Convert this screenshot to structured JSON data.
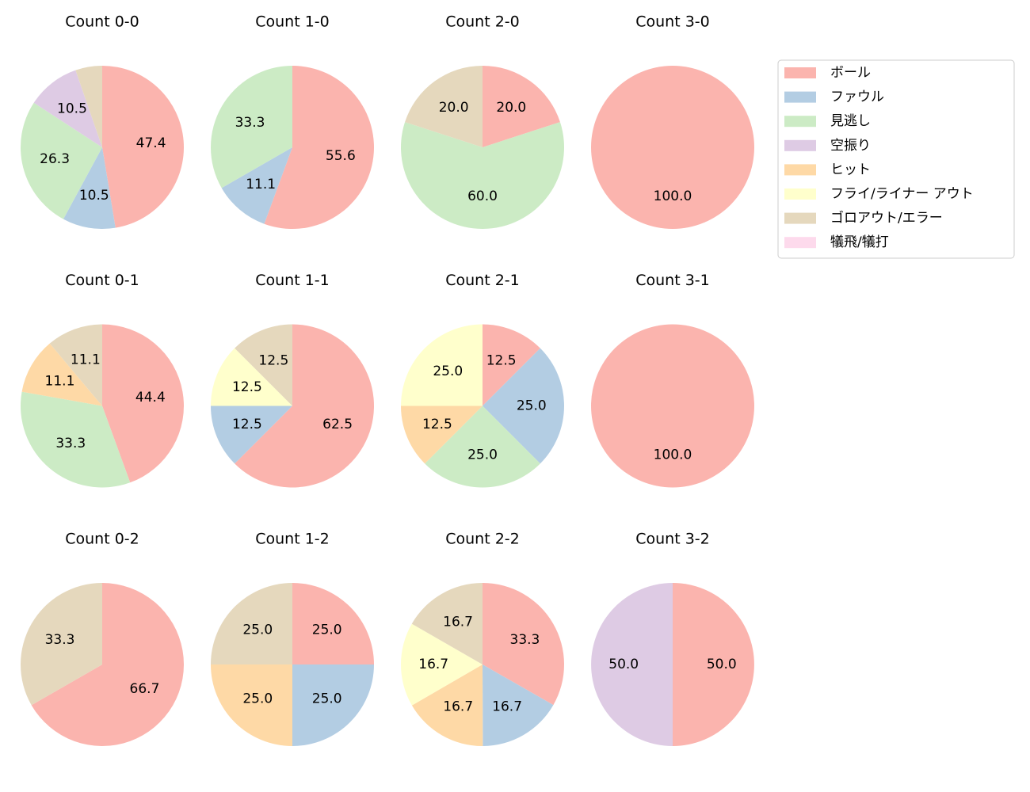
{
  "legend": {
    "labels": [
      "ボール",
      "ファウル",
      "見逃し",
      "空振り",
      "ヒット",
      "フライ/ライナー アウト",
      "ゴロアウト/エラー",
      "犠飛/犠打"
    ],
    "colors": [
      "#fbb4ae",
      "#b3cde3",
      "#ccebc5",
      "#decbe4",
      "#fed9a6",
      "#ffffcc",
      "#e5d8bd",
      "#fddaec"
    ]
  },
  "chart_data": [
    {
      "type": "pie",
      "title": "Count 0-0",
      "categories": [
        "ボール",
        "ファウル",
        "見逃し",
        "空振り",
        "ゴロアウト/エラー"
      ],
      "values": [
        47.4,
        10.5,
        26.3,
        10.5,
        5.3
      ],
      "value_labels": [
        "47.4",
        "10.5",
        "26.3",
        "10.5",
        null
      ]
    },
    {
      "type": "pie",
      "title": "Count 1-0",
      "categories": [
        "ボール",
        "ファウル",
        "見逃し"
      ],
      "values": [
        55.6,
        11.1,
        33.3
      ],
      "value_labels": [
        "55.6",
        "11.1",
        "33.3"
      ]
    },
    {
      "type": "pie",
      "title": "Count 2-0",
      "categories": [
        "ボール",
        "見逃し",
        "ゴロアウト/エラー"
      ],
      "values": [
        20,
        60,
        20
      ],
      "value_labels": [
        "20.0",
        "60.0",
        "20.0"
      ]
    },
    {
      "type": "pie",
      "title": "Count 3-0",
      "categories": [
        "ボール"
      ],
      "values": [
        100
      ],
      "value_labels": [
        "100.0"
      ]
    },
    {
      "type": "pie",
      "title": "Count 0-1",
      "categories": [
        "ボール",
        "見逃し",
        "ヒット",
        "ゴロアウト/エラー"
      ],
      "values": [
        44.4,
        33.3,
        11.1,
        11.1
      ],
      "value_labels": [
        "44.4",
        "33.3",
        "11.1",
        "11.1"
      ]
    },
    {
      "type": "pie",
      "title": "Count 1-1",
      "categories": [
        "ボール",
        "ファウル",
        "フライ/ライナー アウト",
        "ゴロアウト/エラー"
      ],
      "values": [
        62.5,
        12.5,
        12.5,
        12.5
      ],
      "value_labels": [
        "62.5",
        "12.5",
        "12.5",
        "12.5"
      ]
    },
    {
      "type": "pie",
      "title": "Count 2-1",
      "categories": [
        "ボール",
        "ファウル",
        "見逃し",
        "ヒット",
        "フライ/ライナー アウト"
      ],
      "values": [
        12.5,
        25,
        25,
        12.5,
        25
      ],
      "value_labels": [
        "12.5",
        "25.0",
        "25.0",
        "12.5",
        "25.0"
      ]
    },
    {
      "type": "pie",
      "title": "Count 3-1",
      "categories": [
        "ボール"
      ],
      "values": [
        100
      ],
      "value_labels": [
        "100.0"
      ]
    },
    {
      "type": "pie",
      "title": "Count 0-2",
      "categories": [
        "ボール",
        "ゴロアウト/エラー"
      ],
      "values": [
        66.7,
        33.3
      ],
      "value_labels": [
        "66.7",
        "33.3"
      ]
    },
    {
      "type": "pie",
      "title": "Count 1-2",
      "categories": [
        "ボール",
        "ファウル",
        "ヒット",
        "ゴロアウト/エラー"
      ],
      "values": [
        25,
        25,
        25,
        25
      ],
      "value_labels": [
        "25.0",
        "25.0",
        "25.0",
        "25.0"
      ]
    },
    {
      "type": "pie",
      "title": "Count 2-2",
      "categories": [
        "ボール",
        "ファウル",
        "ヒット",
        "フライ/ライナー アウト",
        "ゴロアウト/エラー"
      ],
      "values": [
        33.3,
        16.7,
        16.7,
        16.7,
        16.7
      ],
      "value_labels": [
        "33.3",
        "16.7",
        "16.7",
        "16.7",
        "16.7"
      ]
    },
    {
      "type": "pie",
      "title": "Count 3-2",
      "categories": [
        "ボール",
        "空振り"
      ],
      "values": [
        50,
        50
      ],
      "value_labels": [
        "50.0",
        "50.0"
      ]
    }
  ]
}
